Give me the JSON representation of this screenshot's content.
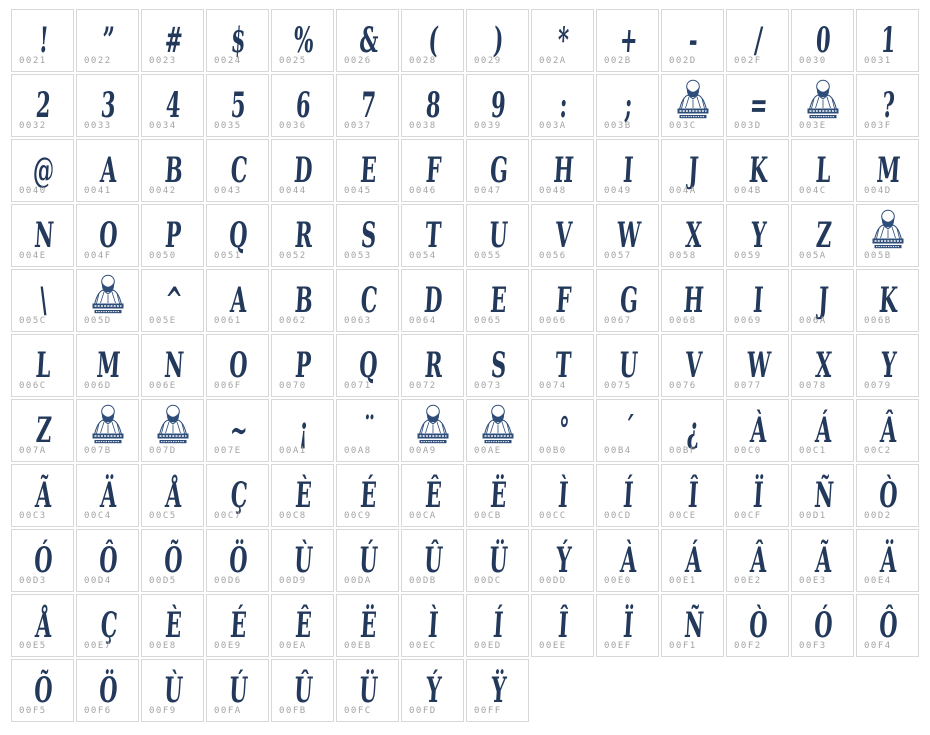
{
  "palette": {
    "glyph_color": "#23395b",
    "code_color": "#a4a4a4",
    "cell_border": "#d8d8d8",
    "cell_background": "#ffffff",
    "logo_line_color": "#2e4d79"
  },
  "icons": {
    "logo_icon_name": "bearded-man-logo-icon"
  },
  "grid": {
    "columns": 14,
    "cells": [
      {
        "code": "0021",
        "glyph": "!"
      },
      {
        "code": "0022",
        "glyph": "”"
      },
      {
        "code": "0023",
        "glyph": "#"
      },
      {
        "code": "0024",
        "glyph": "$"
      },
      {
        "code": "0025",
        "glyph": "%"
      },
      {
        "code": "0026",
        "glyph": "&"
      },
      {
        "code": "0028",
        "glyph": "("
      },
      {
        "code": "0029",
        "glyph": ")"
      },
      {
        "code": "002A",
        "glyph": "*"
      },
      {
        "code": "002B",
        "glyph": "+"
      },
      {
        "code": "002D",
        "glyph": "-"
      },
      {
        "code": "002F",
        "glyph": "/"
      },
      {
        "code": "0030",
        "glyph": "0"
      },
      {
        "code": "0031",
        "glyph": "1"
      },
      {
        "code": "0032",
        "glyph": "2"
      },
      {
        "code": "0033",
        "glyph": "3"
      },
      {
        "code": "0034",
        "glyph": "4"
      },
      {
        "code": "0035",
        "glyph": "5"
      },
      {
        "code": "0036",
        "glyph": "6"
      },
      {
        "code": "0037",
        "glyph": "7"
      },
      {
        "code": "0038",
        "glyph": "8"
      },
      {
        "code": "0039",
        "glyph": "9"
      },
      {
        "code": "003A",
        "glyph": ":"
      },
      {
        "code": "003B",
        "glyph": ";"
      },
      {
        "code": "003C",
        "glyph": "",
        "logo": true
      },
      {
        "code": "003D",
        "glyph": "="
      },
      {
        "code": "003E",
        "glyph": "",
        "logo": true
      },
      {
        "code": "003F",
        "glyph": "?"
      },
      {
        "code": "0040",
        "glyph": "@"
      },
      {
        "code": "0041",
        "glyph": "A"
      },
      {
        "code": "0042",
        "glyph": "B"
      },
      {
        "code": "0043",
        "glyph": "C"
      },
      {
        "code": "0044",
        "glyph": "D"
      },
      {
        "code": "0045",
        "glyph": "E"
      },
      {
        "code": "0046",
        "glyph": "F"
      },
      {
        "code": "0047",
        "glyph": "G"
      },
      {
        "code": "0048",
        "glyph": "H"
      },
      {
        "code": "0049",
        "glyph": "I"
      },
      {
        "code": "004A",
        "glyph": "J"
      },
      {
        "code": "004B",
        "glyph": "K"
      },
      {
        "code": "004C",
        "glyph": "L"
      },
      {
        "code": "004D",
        "glyph": "M"
      },
      {
        "code": "004E",
        "glyph": "N"
      },
      {
        "code": "004F",
        "glyph": "O"
      },
      {
        "code": "0050",
        "glyph": "P"
      },
      {
        "code": "0051",
        "glyph": "Q"
      },
      {
        "code": "0052",
        "glyph": "R"
      },
      {
        "code": "0053",
        "glyph": "S"
      },
      {
        "code": "0054",
        "glyph": "T"
      },
      {
        "code": "0055",
        "glyph": "U"
      },
      {
        "code": "0056",
        "glyph": "V"
      },
      {
        "code": "0057",
        "glyph": "W"
      },
      {
        "code": "0058",
        "glyph": "X"
      },
      {
        "code": "0059",
        "glyph": "Y"
      },
      {
        "code": "005A",
        "glyph": "Z"
      },
      {
        "code": "005B",
        "glyph": "",
        "logo": true
      },
      {
        "code": "005C",
        "glyph": "\\"
      },
      {
        "code": "005D",
        "glyph": "",
        "logo": true
      },
      {
        "code": "005E",
        "glyph": "^"
      },
      {
        "code": "0061",
        "glyph": "A"
      },
      {
        "code": "0062",
        "glyph": "B"
      },
      {
        "code": "0063",
        "glyph": "C"
      },
      {
        "code": "0064",
        "glyph": "D"
      },
      {
        "code": "0065",
        "glyph": "E"
      },
      {
        "code": "0066",
        "glyph": "F"
      },
      {
        "code": "0067",
        "glyph": "G"
      },
      {
        "code": "0068",
        "glyph": "H"
      },
      {
        "code": "0069",
        "glyph": "I"
      },
      {
        "code": "006A",
        "glyph": "J"
      },
      {
        "code": "006B",
        "glyph": "K"
      },
      {
        "code": "006C",
        "glyph": "L"
      },
      {
        "code": "006D",
        "glyph": "M"
      },
      {
        "code": "006E",
        "glyph": "N"
      },
      {
        "code": "006F",
        "glyph": "O"
      },
      {
        "code": "0070",
        "glyph": "P"
      },
      {
        "code": "0071",
        "glyph": "Q"
      },
      {
        "code": "0072",
        "glyph": "R"
      },
      {
        "code": "0073",
        "glyph": "S"
      },
      {
        "code": "0074",
        "glyph": "T"
      },
      {
        "code": "0075",
        "glyph": "U"
      },
      {
        "code": "0076",
        "glyph": "V"
      },
      {
        "code": "0077",
        "glyph": "W"
      },
      {
        "code": "0078",
        "glyph": "X"
      },
      {
        "code": "0079",
        "glyph": "Y"
      },
      {
        "code": "007A",
        "glyph": "Z"
      },
      {
        "code": "007B",
        "glyph": "",
        "logo": true
      },
      {
        "code": "007D",
        "glyph": "",
        "logo": true
      },
      {
        "code": "007E",
        "glyph": "~"
      },
      {
        "code": "00A1",
        "glyph": "¡"
      },
      {
        "code": "00A8",
        "glyph": "¨"
      },
      {
        "code": "00A9",
        "glyph": "",
        "logo": true
      },
      {
        "code": "00AE",
        "glyph": "",
        "logo": true
      },
      {
        "code": "00B0",
        "glyph": "°"
      },
      {
        "code": "00B4",
        "glyph": "´"
      },
      {
        "code": "00BF",
        "glyph": "¿"
      },
      {
        "code": "00C0",
        "glyph": "À"
      },
      {
        "code": "00C1",
        "glyph": "Á"
      },
      {
        "code": "00C2",
        "glyph": "Â"
      },
      {
        "code": "00C3",
        "glyph": "Ã"
      },
      {
        "code": "00C4",
        "glyph": "Ä"
      },
      {
        "code": "00C5",
        "glyph": "Å"
      },
      {
        "code": "00C7",
        "glyph": "Ç"
      },
      {
        "code": "00C8",
        "glyph": "È"
      },
      {
        "code": "00C9",
        "glyph": "É"
      },
      {
        "code": "00CA",
        "glyph": "Ê"
      },
      {
        "code": "00CB",
        "glyph": "Ë"
      },
      {
        "code": "00CC",
        "glyph": "Ì"
      },
      {
        "code": "00CD",
        "glyph": "Í"
      },
      {
        "code": "00CE",
        "glyph": "Î"
      },
      {
        "code": "00CF",
        "glyph": "Ï"
      },
      {
        "code": "00D1",
        "glyph": "Ñ"
      },
      {
        "code": "00D2",
        "glyph": "Ò"
      },
      {
        "code": "00D3",
        "glyph": "Ó"
      },
      {
        "code": "00D4",
        "glyph": "Ô"
      },
      {
        "code": "00D5",
        "glyph": "Õ"
      },
      {
        "code": "00D6",
        "glyph": "Ö"
      },
      {
        "code": "00D9",
        "glyph": "Ù"
      },
      {
        "code": "00DA",
        "glyph": "Ú"
      },
      {
        "code": "00DB",
        "glyph": "Û"
      },
      {
        "code": "00DC",
        "glyph": "Ü"
      },
      {
        "code": "00DD",
        "glyph": "Ý"
      },
      {
        "code": "00E0",
        "glyph": "À"
      },
      {
        "code": "00E1",
        "glyph": "Á"
      },
      {
        "code": "00E2",
        "glyph": "Â"
      },
      {
        "code": "00E3",
        "glyph": "Ã"
      },
      {
        "code": "00E4",
        "glyph": "Ä"
      },
      {
        "code": "00E5",
        "glyph": "Å"
      },
      {
        "code": "00E7",
        "glyph": "Ç"
      },
      {
        "code": "00E8",
        "glyph": "È"
      },
      {
        "code": "00E9",
        "glyph": "É"
      },
      {
        "code": "00EA",
        "glyph": "Ê"
      },
      {
        "code": "00EB",
        "glyph": "Ë"
      },
      {
        "code": "00EC",
        "glyph": "Ì"
      },
      {
        "code": "00ED",
        "glyph": "Í"
      },
      {
        "code": "00EE",
        "glyph": "Î"
      },
      {
        "code": "00EF",
        "glyph": "Ï"
      },
      {
        "code": "00F1",
        "glyph": "Ñ"
      },
      {
        "code": "00F2",
        "glyph": "Ò"
      },
      {
        "code": "00F3",
        "glyph": "Ó"
      },
      {
        "code": "00F4",
        "glyph": "Ô"
      },
      {
        "code": "00F5",
        "glyph": "Õ"
      },
      {
        "code": "00F6",
        "glyph": "Ö"
      },
      {
        "code": "00F9",
        "glyph": "Ù"
      },
      {
        "code": "00FA",
        "glyph": "Ú"
      },
      {
        "code": "00FB",
        "glyph": "Û"
      },
      {
        "code": "00FC",
        "glyph": "Ü"
      },
      {
        "code": "00FD",
        "glyph": "Ý"
      },
      {
        "code": "00FF",
        "glyph": "Ÿ"
      }
    ]
  }
}
